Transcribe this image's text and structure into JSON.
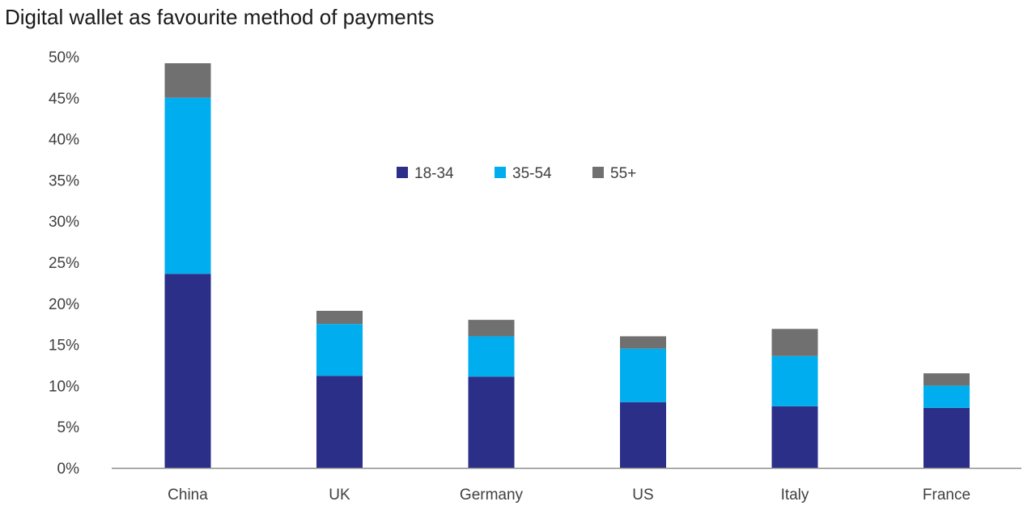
{
  "chart_data": {
    "type": "bar",
    "stacked": true,
    "title": "Digital wallet as favourite method of payments",
    "xlabel": "",
    "ylabel": "",
    "categories": [
      "China",
      "UK",
      "Germany",
      "US",
      "Italy",
      "France"
    ],
    "series": [
      {
        "name": "18-34",
        "color": "#2b2f87",
        "values": [
          23.6,
          11.2,
          11.1,
          8.0,
          7.5,
          7.3
        ]
      },
      {
        "name": "35-54",
        "color": "#00aeef",
        "values": [
          21.4,
          6.3,
          4.9,
          6.5,
          6.1,
          2.7
        ]
      },
      {
        "name": "55+",
        "color": "#707070",
        "values": [
          4.2,
          1.6,
          2.0,
          1.5,
          3.3,
          1.5
        ]
      }
    ],
    "ylim": [
      0,
      50
    ],
    "yticks": [
      "0%",
      "5%",
      "10%",
      "15%",
      "20%",
      "25%",
      "30%",
      "35%",
      "40%",
      "45%",
      "50%"
    ],
    "grid": false,
    "legend_position": "top-center"
  }
}
